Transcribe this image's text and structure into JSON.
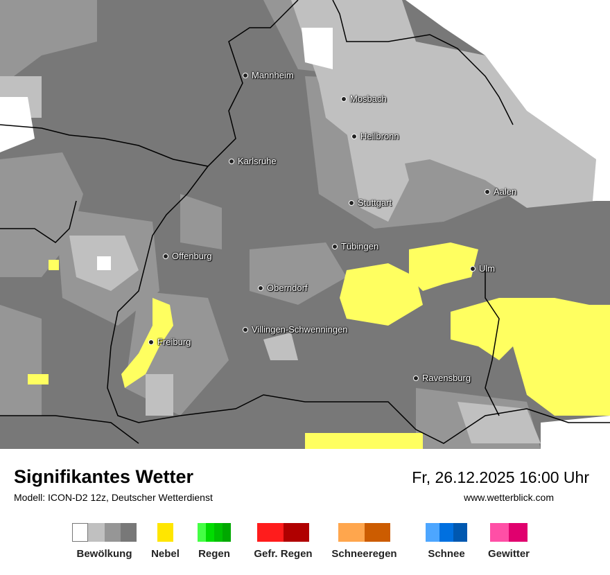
{
  "map": {
    "cities": [
      {
        "name": "Mannheim"
      },
      {
        "name": "Mosbach"
      },
      {
        "name": "Heilbronn"
      },
      {
        "name": "Karlsruhe"
      },
      {
        "name": "Aalen"
      },
      {
        "name": "Stuttgart"
      },
      {
        "name": "Tübingen"
      },
      {
        "name": "Offenburg"
      },
      {
        "name": "Ulm"
      },
      {
        "name": "Oberndorf"
      },
      {
        "name": "Villingen-Schwenningen"
      },
      {
        "name": "Freiburg"
      },
      {
        "name": "Ravensburg"
      }
    ]
  },
  "footer": {
    "title": "Signifikantes Wetter",
    "model": "Modell: ICON-D2 12z, Deutscher Wetterdienst",
    "datetime": "Fr, 26.12.2025 16:00 Uhr",
    "website": "www.wetterblick.com"
  },
  "legend": [
    {
      "label": "Bewölkung",
      "colors": [
        "#ffffff",
        "#c0c0c0",
        "#969696",
        "#787878"
      ]
    },
    {
      "label": "Nebel",
      "colors": [
        "#ffe600"
      ]
    },
    {
      "label": "Regen",
      "colors": [
        "#44ff44",
        "#00dd00",
        "#00c000",
        "#00a800"
      ]
    },
    {
      "label": "Gefr. Regen",
      "colors": [
        "#ff1c1c",
        "#b00000"
      ]
    },
    {
      "label": "Schneeregen",
      "colors": [
        "#ffa64d",
        "#cc5c00"
      ]
    },
    {
      "label": "Schnee",
      "colors": [
        "#4da6ff",
        "#0070e0",
        "#0058b0"
      ]
    },
    {
      "label": "Gewitter",
      "colors": [
        "#ff4fa6",
        "#e0006e"
      ]
    }
  ]
}
